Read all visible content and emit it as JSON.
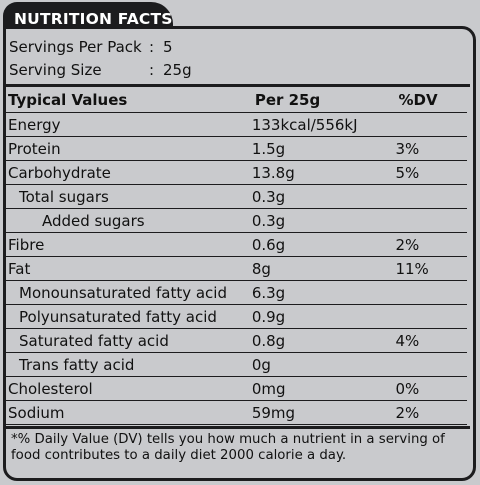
{
  "header": {
    "title": "NUTRITION FACTS"
  },
  "servings": [
    {
      "label": "Servings Per Pack",
      "value": "5"
    },
    {
      "label": "Serving Size",
      "value": "25g"
    }
  ],
  "table": {
    "headers": [
      "Typical Values",
      "Per 25g",
      "%DV"
    ],
    "rows": [
      {
        "name": "Energy",
        "per": "133kcal/556kJ",
        "dv": "",
        "level": 0
      },
      {
        "name": "Protein",
        "per": "1.5g",
        "dv": "3%",
        "level": 0
      },
      {
        "name": "Carbohydrate",
        "per": "13.8g",
        "dv": "5%",
        "level": 0
      },
      {
        "name": "Total sugars",
        "per": "0.3g",
        "dv": "",
        "level": 1
      },
      {
        "name": "Added sugars",
        "per": "0.3g",
        "dv": "",
        "level": 2
      },
      {
        "name": "Fibre",
        "per": "0.6g",
        "dv": "2%",
        "level": 0
      },
      {
        "name": "Fat",
        "per": "8g",
        "dv": "11%",
        "level": 0
      },
      {
        "name": "Monounsaturated fatty acid",
        "per": "6.3g",
        "dv": "",
        "level": 1
      },
      {
        "name": "Polyunsaturated fatty acid",
        "per": "0.9g",
        "dv": "",
        "level": 1
      },
      {
        "name": "Saturated fatty acid",
        "per": "0.8g",
        "dv": "4%",
        "level": 1
      },
      {
        "name": "Trans fatty acid",
        "per": "0g",
        "dv": "",
        "level": 1
      },
      {
        "name": "Cholesterol",
        "per": "0mg",
        "dv": "0%",
        "level": 0
      },
      {
        "name": "Sodium",
        "per": "59mg",
        "dv": "2%",
        "level": 0
      }
    ]
  },
  "footnote": "*% Daily Value (DV) tells you how much a nutrient in a serving of food contributes to a daily diet 2000 calorie a day."
}
